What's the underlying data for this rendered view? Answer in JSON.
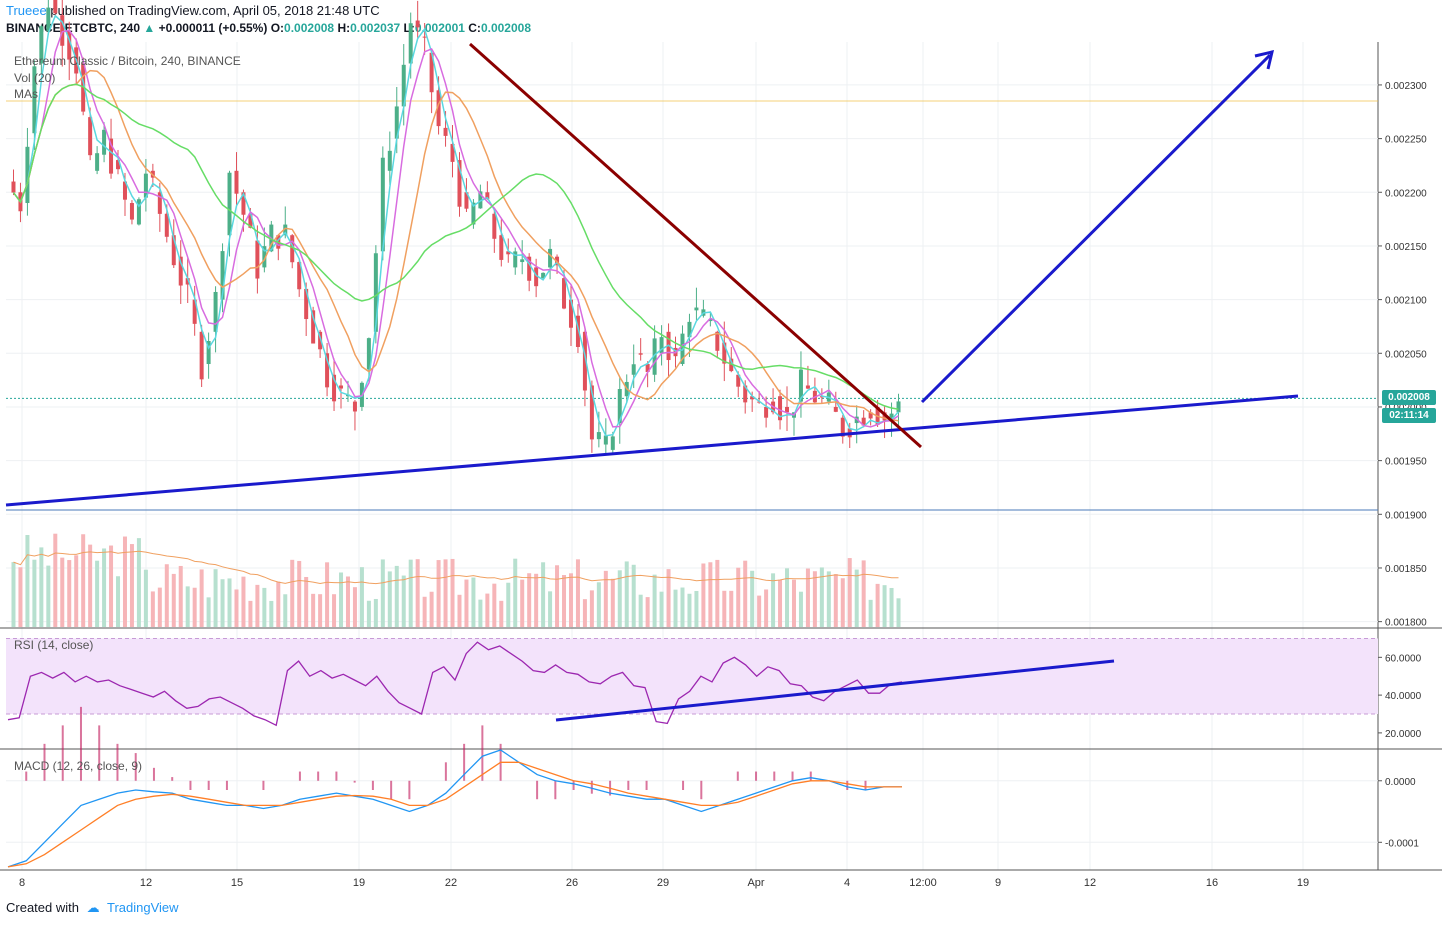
{
  "header": {
    "author": "Trueee",
    "published": "published on TradingView.com, April 05, 2018 21:48 UTC",
    "symbol_line": "BINANCE:ETCBTC, 240",
    "change": "+0.000011 (+0.55%)",
    "o_label": "O:",
    "o": "0.002008",
    "h_label": "H:",
    "h": "0.002037",
    "l_label": "L:",
    "l": "0.002001",
    "c_label": "C:",
    "c": "0.002008"
  },
  "legend": {
    "title": "Ethereum Classic / Bitcoin, 240, BINANCE",
    "vol": "Vol (20)",
    "mas": "MAs"
  },
  "rsi_label": "RSI (14, close)",
  "macd_label": "MACD (12, 26, close, 9)",
  "price_tag": "0.002008",
  "countdown": "02:11:14",
  "footer": {
    "created": "Created with",
    "brand": "TradingView"
  },
  "colors": {
    "up": "#4caf88",
    "down": "#e0505a",
    "ma_fast": "#5ad8e0",
    "ma_mid": "#d86ce0",
    "ma_slow": "#f0a060",
    "ma_long": "#66dd66",
    "trend_blue": "#1a1acc",
    "trend_red": "#8b0000",
    "rsi_band": "#f3e3fb",
    "rsi_line": "#9c27b0"
  },
  "chart_data": [
    {
      "type": "candlestick",
      "title": "Ethereum Classic / Bitcoin, 240, BINANCE",
      "y_ticks": [
        "0.002300",
        "0.002250",
        "0.002200",
        "0.002150",
        "0.002100",
        "0.002050",
        "0.002000",
        "0.001950",
        "0.001900",
        "0.001850",
        "0.001800"
      ],
      "ylim": [
        0.001795,
        0.00234
      ],
      "x_ticks": [
        "8",
        "12",
        "15",
        "19",
        "22",
        "26",
        "29",
        "Apr",
        "4",
        "12:00",
        "9",
        "12",
        "16",
        "19"
      ],
      "close_path": [
        0.00221,
        0.00219,
        0.00232,
        0.00238,
        0.00235,
        0.00232,
        0.00222,
        0.00225,
        0.00221,
        0.00217,
        0.00222,
        0.00218,
        0.00214,
        0.0021,
        0.00204,
        0.0021,
        0.00222,
        0.00218,
        0.00213,
        0.00216,
        0.00216,
        0.00211,
        0.00207,
        0.00203,
        0.00201,
        0.002,
        0.00207,
        0.00222,
        0.00228,
        0.00236,
        0.00233,
        0.00226,
        0.00223,
        0.00217,
        0.0022,
        0.00216,
        0.00213,
        0.00214,
        0.00212,
        0.00214,
        0.0021,
        0.00207,
        0.00197,
        0.00196,
        0.00201,
        0.00205,
        0.00203,
        0.00207,
        0.00204,
        0.00209,
        0.00208,
        0.00206,
        0.00203,
        0.00201,
        0.002,
        0.00201,
        0.00199,
        0.00202,
        0.00201,
        0.002,
        0.00198,
        0.00199,
        0.002,
        0.00199,
        0.002
      ],
      "last_price": 0.002008,
      "horizontal_line": 0.002285
    },
    {
      "type": "bar",
      "title": "Vol (20)"
    },
    {
      "type": "line",
      "title": "RSI (14, close)",
      "y_ticks": [
        "60.0000",
        "40.0000",
        "20.0000"
      ],
      "ylim": [
        12,
        75
      ],
      "band": [
        30,
        70
      ],
      "values": [
        27,
        28,
        50,
        52,
        49,
        52,
        47,
        50,
        47,
        48,
        45,
        43,
        41,
        39,
        42,
        37,
        33,
        34,
        38,
        39,
        36,
        33,
        29,
        27,
        24,
        53,
        58,
        50,
        53,
        49,
        51,
        48,
        45,
        50,
        42,
        36,
        33,
        30,
        52,
        55,
        48,
        62,
        68,
        64,
        66,
        62,
        58,
        53,
        52,
        56,
        52,
        51,
        47,
        46,
        50,
        52,
        45,
        44,
        26,
        25,
        38,
        42,
        50,
        47,
        57,
        60,
        56,
        50,
        55,
        53,
        46,
        45,
        39,
        37,
        42,
        45,
        48,
        41,
        41,
        46,
        47
      ]
    },
    {
      "type": "line",
      "title": "MACD (12, 26, close, 9)",
      "y_ticks": [
        "0.0000",
        "-0.0001"
      ],
      "ylim": [
        -0.000145,
        5e-05
      ],
      "macd": [
        -0.00014,
        -0.00013,
        -0.0001,
        -7e-05,
        -4e-05,
        -3e-05,
        -2e-05,
        -1.5e-05,
        -1.8e-05,
        -2e-05,
        -3e-05,
        -3.5e-05,
        -4e-05,
        -4e-05,
        -4.5e-05,
        -4e-05,
        -3e-05,
        -2.5e-05,
        -2e-05,
        -2.5e-05,
        -3e-05,
        -4e-05,
        -5e-05,
        -4e-05,
        -2e-05,
        1e-05,
        4e-05,
        5e-05,
        3e-05,
        1e-05,
        0.0,
        -5e-06,
        -1.2e-05,
        -2e-05,
        -2.5e-05,
        -3e-05,
        -3e-05,
        -4e-05,
        -5e-05,
        -4e-05,
        -3e-05,
        -2e-05,
        -1e-05,
        0.0,
        5e-06,
        0.0,
        -1e-05,
        -1.5e-05,
        -1e-05,
        -1e-05
      ],
      "signal": [
        -0.00014,
        -0.000135,
        -0.00012,
        -0.0001,
        -8e-05,
        -6e-05,
        -4e-05,
        -3e-05,
        -2.5e-05,
        -2.2e-05,
        -2.5e-05,
        -3e-05,
        -3.5e-05,
        -4e-05,
        -4e-05,
        -4e-05,
        -3.5e-05,
        -3e-05,
        -2.5e-05,
        -2.4e-05,
        -2.5e-05,
        -3e-05,
        -4e-05,
        -4e-05,
        -3e-05,
        -1e-05,
        1e-05,
        3e-05,
        3e-05,
        2e-05,
        1e-05,
        0.0,
        -5e-06,
        -1.2e-05,
        -2e-05,
        -2.5e-05,
        -3e-05,
        -3.5e-05,
        -4e-05,
        -4e-05,
        -3.5e-05,
        -2.5e-05,
        -1.5e-05,
        -5e-06,
        0.0,
        0.0,
        -5e-06,
        -1e-05,
        -1e-05,
        -1e-05
      ]
    }
  ]
}
